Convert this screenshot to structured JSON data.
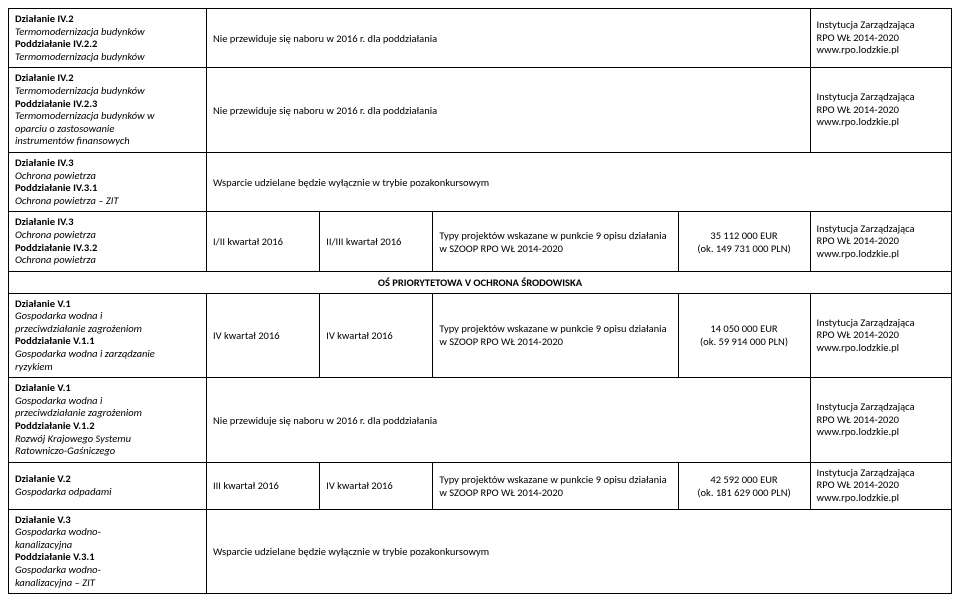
{
  "rows": [
    {
      "desc": [
        {
          "t": "Działanie IV.2",
          "b": true
        },
        {
          "t": "Termomodernizacja budynków",
          "i": true
        },
        {
          "t": "Poddziałanie IV.2.2",
          "b": true
        },
        {
          "t": "Termomodernizacja budynków",
          "i": true
        }
      ],
      "note": "Nie przewiduje się naboru w 2016 r. dla poddziałania",
      "inst": [
        "Instytucja Zarządzająca",
        "RPO WŁ 2014-2020",
        "www.rpo.lodzkie.pl"
      ]
    },
    {
      "desc": [
        {
          "t": "Działanie IV.2",
          "b": true
        },
        {
          "t": "Termomodernizacja budynków",
          "i": true
        },
        {
          "t": "Poddziałanie IV.2.3",
          "b": true
        },
        {
          "t": "Termomodernizacja budynków w",
          "i": true
        },
        {
          "t": "oparciu o zastosowanie",
          "i": true
        },
        {
          "t": "instrumentów finansowych",
          "i": true
        }
      ],
      "note": "Nie przewiduje się naboru w 2016 r. dla poddziałania",
      "inst": [
        "Instytucja Zarządzająca",
        "RPO WŁ 2014-2020",
        "www.rpo.lodzkie.pl"
      ]
    },
    {
      "desc": [
        {
          "t": "Działanie IV.3",
          "b": true
        },
        {
          "t": "Ochrona powietrza",
          "i": true
        },
        {
          "t": "Poddziałanie IV.3.1",
          "b": true
        },
        {
          "t": "Ochrona powietrza – ZIT",
          "i": true
        }
      ],
      "note": "Wsparcie udzielane będzie wyłącznie w trybie pozakonkursowym"
    },
    {
      "desc": [
        {
          "t": "Działanie IV.3",
          "b": true
        },
        {
          "t": "Ochrona powietrza",
          "i": true
        },
        {
          "t": "Poddziałanie IV.3.2",
          "b": true
        },
        {
          "t": "Ochrona powietrza",
          "i": true
        }
      ],
      "c2": "I/II kwartał 2016",
      "c3": "II/III kwartał 2016",
      "c4": "Typy projektów wskazane w punkcie 9 opisu działania w SZOOP RPO WŁ 2014-2020",
      "c5a": "35 112 000 EUR",
      "c5b": "(ok. 149 731 000 PLN)",
      "inst": [
        "Instytucja Zarządzająca",
        "RPO WŁ 2014-2020",
        "www.rpo.lodzkie.pl"
      ]
    }
  ],
  "section": "OŚ PRIORYTETOWA V OCHRONA ŚRODOWISKA",
  "rows2": [
    {
      "desc": [
        {
          "t": "Działanie V.1",
          "b": true
        },
        {
          "t": "Gospodarka wodna i",
          "i": true
        },
        {
          "t": "przeciwdziałanie zagrożeniom",
          "i": true
        },
        {
          "t": "Poddziałanie V.1.1",
          "b": true
        },
        {
          "t": "Gospodarka wodna i zarządzanie",
          "i": true
        },
        {
          "t": "ryzykiem",
          "i": true
        }
      ],
      "c2": "IV kwartał 2016",
      "c3": "IV kwartał 2016",
      "c4": "Typy projektów wskazane w punkcie 9 opisu działania w SZOOP RPO WŁ 2014-2020",
      "c5a": "14 050 000 EUR",
      "c5b": "(ok. 59 914 000 PLN)",
      "inst": [
        "Instytucja Zarządzająca",
        "RPO WŁ 2014-2020",
        "www.rpo.lodzkie.pl"
      ]
    },
    {
      "desc": [
        {
          "t": "Działanie V.1",
          "b": true
        },
        {
          "t": "Gospodarka wodna i",
          "i": true
        },
        {
          "t": "przeciwdziałanie zagrożeniom",
          "i": true
        },
        {
          "t": "Poddziałanie V.1.2",
          "b": true
        },
        {
          "t": "Rozwój Krajowego Systemu",
          "i": true
        },
        {
          "t": "Ratowniczo-Gaśniczego",
          "i": true
        }
      ],
      "note": "Nie przewiduje się naboru w 2016 r. dla poddziałania",
      "inst": [
        "Instytucja Zarządzająca",
        "RPO WŁ 2014-2020",
        "www.rpo.lodzkie.pl"
      ]
    },
    {
      "desc": [
        {
          "t": "Działanie V.2",
          "b": true
        },
        {
          "t": "Gospodarka odpadami",
          "i": true
        }
      ],
      "c2": "III kwartał 2016",
      "c3": "IV kwartał 2016",
      "c4": "Typy projektów wskazane w punkcie 9 opisu działania w SZOOP RPO WŁ 2014-2020",
      "c5a": "42 592 000 EUR",
      "c5b": "(ok. 181 629 000 PLN)",
      "inst": [
        "Instytucja Zarządzająca",
        "RPO WŁ 2014-2020",
        "www.rpo.lodzkie.pl"
      ]
    },
    {
      "desc": [
        {
          "t": "Działanie V.3",
          "b": true
        },
        {
          "t": "Gospodarka wodno-",
          "i": true
        },
        {
          "t": "kanalizacyjna",
          "i": true
        },
        {
          "t": "Poddziałanie V.3.1",
          "b": true
        },
        {
          "t": "Gospodarka wodno-",
          "i": true
        },
        {
          "t": "kanalizacyjna – ZIT",
          "i": true
        }
      ],
      "note": "Wsparcie udzielane będzie wyłącznie w trybie pozakonkursowym"
    }
  ]
}
